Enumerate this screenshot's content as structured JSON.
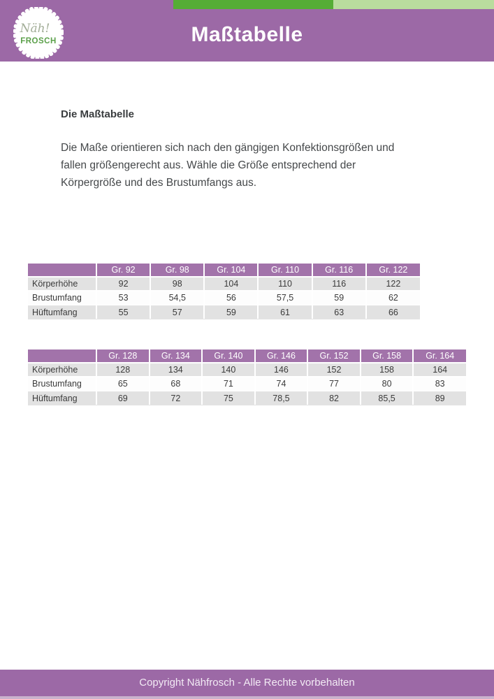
{
  "header": {
    "title": "Maßtabelle",
    "logo": {
      "script": "Näh!",
      "name": "FROSCH"
    }
  },
  "intro": {
    "heading": "Die Maßtabelle",
    "body": "Die Maße orientieren sich nach den gängigen Konfektionsgrößen und fallen größengerecht aus. Wähle die Größe entsprechend der Körpergröße und des Brustumfangs aus."
  },
  "tables": [
    {
      "name": "sizes-92-122",
      "columns": [
        "",
        "Gr. 92",
        "Gr. 98",
        "Gr. 104",
        "Gr. 110",
        "Gr. 116",
        "Gr. 122"
      ],
      "rows": [
        {
          "label": "Körperhöhe",
          "values": [
            "92",
            "98",
            "104",
            "110",
            "116",
            "122"
          ]
        },
        {
          "label": "Brustumfang",
          "values": [
            "53",
            "54,5",
            "56",
            "57,5",
            "59",
            "62"
          ]
        },
        {
          "label": "Hüftumfang",
          "values": [
            "55",
            "57",
            "59",
            "61",
            "63",
            "66"
          ]
        }
      ]
    },
    {
      "name": "sizes-128-164",
      "columns": [
        "",
        "Gr. 128",
        "Gr. 134",
        "Gr. 140",
        "Gr. 146",
        "Gr. 152",
        "Gr. 158",
        "Gr. 164"
      ],
      "rows": [
        {
          "label": "Körperhöhe",
          "values": [
            "128",
            "134",
            "140",
            "146",
            "152",
            "158",
            "164"
          ]
        },
        {
          "label": "Brustumfang",
          "values": [
            "65",
            "68",
            "71",
            "74",
            "77",
            "80",
            "83"
          ]
        },
        {
          "label": "Hüftumfang",
          "values": [
            "69",
            "72",
            "75",
            "78,5",
            "82",
            "85,5",
            "89"
          ]
        }
      ]
    }
  ],
  "footer": {
    "text": "Copyright Nähfrosch - Alle Rechte vorbehalten"
  },
  "colors": {
    "purple": "#9c69a6",
    "table_header_purple": "#a273aa",
    "green_dark": "#55ad36",
    "green_light": "#b9dc9e",
    "row_stripe": "#e2e2e2",
    "footer_strip": "#c9b2cd"
  }
}
